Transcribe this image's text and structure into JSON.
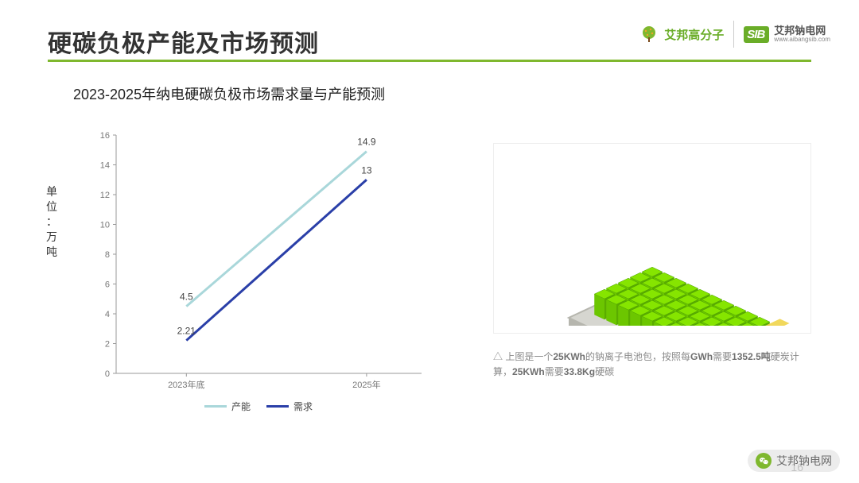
{
  "title": "硬碳负极产能及市场预测",
  "subtitle": "2023-2025年纳电硬碳负极市场需求量与产能预测",
  "page_number": 16,
  "logos": {
    "left": {
      "name": "艾邦高分子"
    },
    "right": {
      "badge": "SIB",
      "name": "艾邦钠电网",
      "url": "www.aibangsib.com"
    }
  },
  "yaxis_label": "单位：万吨",
  "chart": {
    "type": "line",
    "categories": [
      "2023年底",
      "2025年"
    ],
    "x_positions": [
      0.23,
      0.82
    ],
    "ylim": [
      0,
      16
    ],
    "ytick_step": 2,
    "background_color": "#ffffff",
    "axis_color": "#999999",
    "tick_font_size": 11,
    "label_font_size": 12,
    "line_width": 3,
    "series": [
      {
        "name": "产能",
        "color": "#a9d7da",
        "values": [
          4.5,
          14.9
        ],
        "labels": [
          "4.5",
          "14.9"
        ]
      },
      {
        "name": "需求",
        "color": "#2a3fa8",
        "values": [
          2.21,
          13
        ],
        "labels": [
          "2.21",
          "13"
        ]
      }
    ]
  },
  "battery_illustration": {
    "tray_color": "#d6d6d0",
    "tray_edge_color": "#b6b6ae",
    "cell_color": "#86e500",
    "cell_edge_color": "#4aa000",
    "bracket_color": "#f0d44a",
    "rows": 5,
    "cols": 10
  },
  "caption": {
    "prefix": "△ 上图是一个",
    "bold1": "25KWh",
    "mid1": "的钠离子电池包，按照每",
    "bold2": "GWh",
    "mid2": "需要",
    "bold3": "1352.5吨",
    "mid3": "硬炭计算，",
    "bold4": "25KWh",
    "mid4": "需要",
    "bold5": "33.8Kg",
    "suffix": "硬碳"
  },
  "wechat_badge": "艾邦钠电网"
}
